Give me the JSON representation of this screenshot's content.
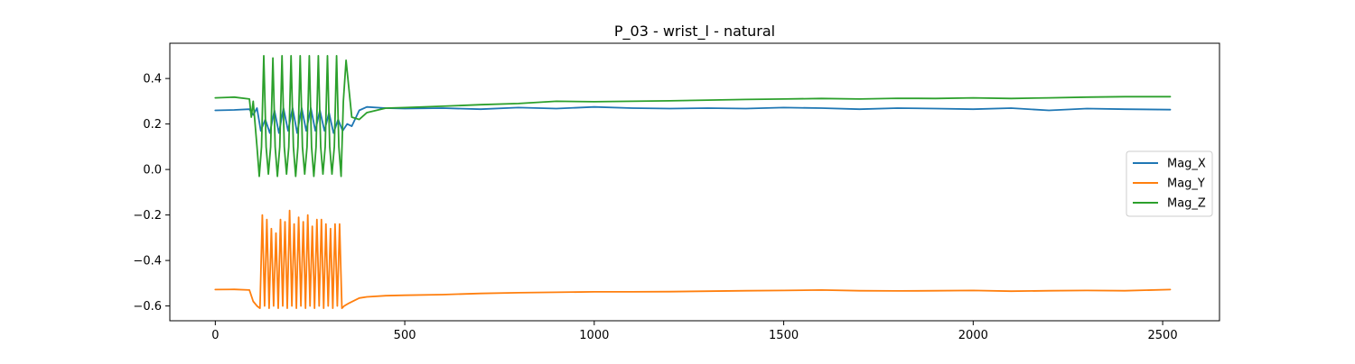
{
  "chart_data": {
    "type": "line",
    "title": "P_03 - wrist_l - natural",
    "xlabel": "",
    "ylabel": "",
    "xlim": [
      -120,
      2650
    ],
    "ylim": [
      -0.665,
      0.555
    ],
    "xticks": [
      0,
      500,
      1000,
      1500,
      2000,
      2500
    ],
    "yticks": [
      -0.6,
      -0.4,
      -0.2,
      0.0,
      0.2,
      0.4
    ],
    "xtick_labels": [
      "0",
      "500",
      "1000",
      "1500",
      "2000",
      "2500"
    ],
    "ytick_labels": [
      "−0.6",
      "−0.4",
      "−0.2",
      "0.0",
      "0.2",
      "0.4"
    ],
    "grid": false,
    "legend_position": "center-right",
    "series": [
      {
        "name": "Mag_X",
        "color": "#1f77b4",
        "x": [
          0,
          50,
          90,
          100,
          110,
          120,
          132,
          144,
          156,
          168,
          180,
          192,
          204,
          216,
          228,
          240,
          252,
          264,
          276,
          288,
          300,
          312,
          324,
          336,
          348,
          360,
          380,
          400,
          450,
          500,
          600,
          700,
          800,
          900,
          1000,
          1100,
          1200,
          1300,
          1400,
          1500,
          1600,
          1700,
          1800,
          1900,
          2000,
          2100,
          2200,
          2300,
          2400,
          2520
        ],
        "y": [
          0.26,
          0.262,
          0.265,
          0.24,
          0.27,
          0.17,
          0.22,
          0.16,
          0.26,
          0.16,
          0.27,
          0.17,
          0.27,
          0.16,
          0.27,
          0.17,
          0.27,
          0.17,
          0.26,
          0.17,
          0.25,
          0.16,
          0.22,
          0.17,
          0.2,
          0.19,
          0.26,
          0.275,
          0.27,
          0.268,
          0.27,
          0.265,
          0.272,
          0.268,
          0.275,
          0.27,
          0.268,
          0.27,
          0.268,
          0.272,
          0.27,
          0.265,
          0.27,
          0.268,
          0.265,
          0.27,
          0.26,
          0.268,
          0.265,
          0.263
        ]
      },
      {
        "name": "Mag_Y",
        "color": "#ff7f0e",
        "x": [
          0,
          50,
          90,
          100,
          110,
          118,
          124,
          130,
          136,
          142,
          148,
          154,
          160,
          166,
          172,
          178,
          184,
          190,
          196,
          202,
          208,
          214,
          220,
          226,
          232,
          238,
          244,
          250,
          256,
          262,
          268,
          274,
          280,
          286,
          292,
          298,
          304,
          310,
          316,
          322,
          328,
          334,
          340,
          350,
          380,
          400,
          450,
          500,
          600,
          700,
          800,
          900,
          1000,
          1100,
          1200,
          1300,
          1400,
          1500,
          1600,
          1700,
          1800,
          1900,
          2000,
          2100,
          2200,
          2300,
          2400,
          2520
        ],
        "y": [
          -0.528,
          -0.527,
          -0.53,
          -0.58,
          -0.6,
          -0.61,
          -0.2,
          -0.6,
          -0.22,
          -0.61,
          -0.26,
          -0.6,
          -0.28,
          -0.61,
          -0.22,
          -0.6,
          -0.23,
          -0.61,
          -0.18,
          -0.6,
          -0.24,
          -0.61,
          -0.21,
          -0.6,
          -0.23,
          -0.61,
          -0.2,
          -0.6,
          -0.25,
          -0.61,
          -0.22,
          -0.6,
          -0.22,
          -0.61,
          -0.24,
          -0.6,
          -0.26,
          -0.61,
          -0.24,
          -0.6,
          -0.24,
          -0.61,
          -0.6,
          -0.59,
          -0.565,
          -0.56,
          -0.555,
          -0.553,
          -0.55,
          -0.545,
          -0.542,
          -0.54,
          -0.538,
          -0.538,
          -0.537,
          -0.535,
          -0.533,
          -0.532,
          -0.53,
          -0.533,
          -0.534,
          -0.533,
          -0.532,
          -0.535,
          -0.533,
          -0.532,
          -0.533,
          -0.528
        ]
      },
      {
        "name": "Mag_Z",
        "color": "#2ca02c",
        "x": [
          0,
          50,
          90,
          95,
          100,
          110,
          116,
          122,
          128,
          134,
          140,
          146,
          152,
          158,
          164,
          170,
          176,
          182,
          188,
          194,
          200,
          206,
          212,
          218,
          224,
          230,
          236,
          242,
          248,
          254,
          260,
          266,
          272,
          278,
          284,
          290,
          296,
          302,
          308,
          314,
          320,
          326,
          332,
          338,
          345,
          360,
          380,
          400,
          450,
          500,
          600,
          700,
          800,
          900,
          1000,
          1100,
          1200,
          1300,
          1400,
          1500,
          1600,
          1700,
          1800,
          1900,
          2000,
          2100,
          2200,
          2300,
          2400,
          2520
        ],
        "y": [
          0.315,
          0.318,
          0.31,
          0.23,
          0.3,
          0.1,
          -0.03,
          0.1,
          0.5,
          0.1,
          -0.02,
          0.1,
          0.49,
          0.1,
          -0.03,
          0.1,
          0.5,
          0.1,
          -0.02,
          0.1,
          0.5,
          0.1,
          -0.03,
          0.1,
          0.5,
          0.1,
          -0.02,
          0.1,
          0.5,
          0.1,
          -0.03,
          0.1,
          0.5,
          0.1,
          -0.02,
          0.1,
          0.5,
          0.1,
          -0.02,
          0.1,
          0.5,
          0.1,
          -0.03,
          0.3,
          0.48,
          0.23,
          0.22,
          0.25,
          0.27,
          0.272,
          0.278,
          0.285,
          0.29,
          0.3,
          0.298,
          0.3,
          0.302,
          0.305,
          0.308,
          0.31,
          0.312,
          0.31,
          0.313,
          0.312,
          0.315,
          0.312,
          0.315,
          0.318,
          0.32,
          0.32
        ]
      }
    ]
  }
}
